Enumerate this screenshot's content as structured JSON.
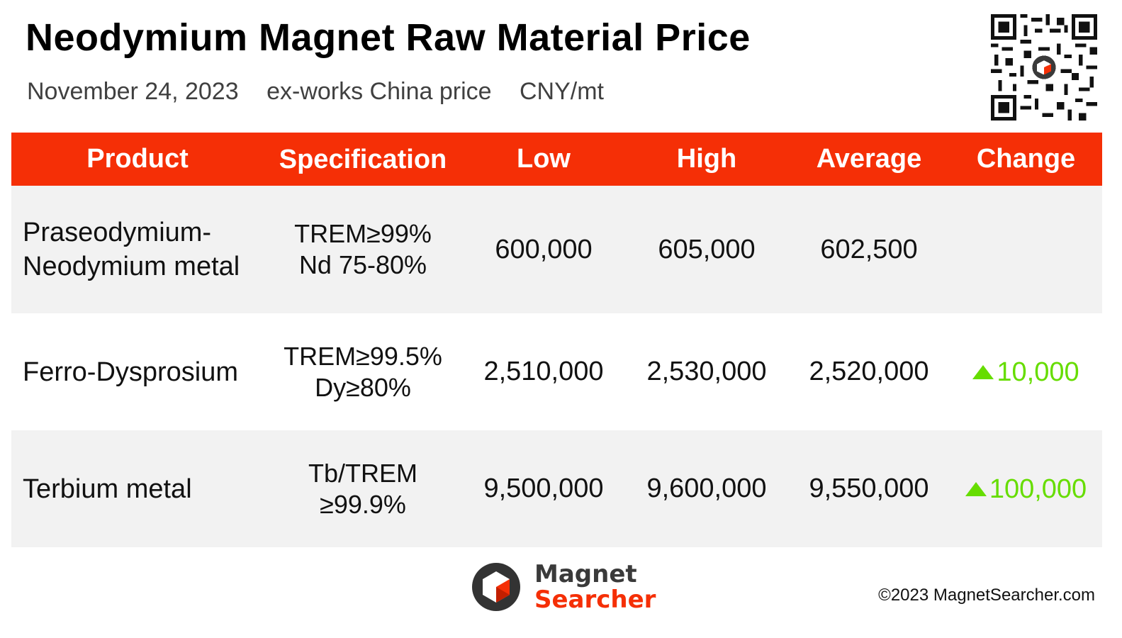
{
  "header": {
    "title": "Neodymium Magnet Raw Material Price",
    "date": "November 24, 2023",
    "basis": "ex-works China price",
    "unit": "CNY/mt"
  },
  "table": {
    "columns": [
      "Product",
      "Specification",
      "Low",
      "High",
      "Average",
      "Change"
    ],
    "rows": [
      {
        "product_line1": "Praseodymium-",
        "product_line2": "Neodymium metal",
        "spec_line1": "TREM≥99%",
        "spec_line2": "Nd 75-80%",
        "low": "600,000",
        "high": "605,000",
        "average": "602,500",
        "change": ""
      },
      {
        "product_line1": "Ferro-Dysprosium",
        "product_line2": "",
        "spec_line1": "TREM≥99.5%",
        "spec_line2": "Dy≥80%",
        "low": "2,510,000",
        "high": "2,530,000",
        "average": "2,520,000",
        "change": "10,000"
      },
      {
        "product_line1": "Terbium metal",
        "product_line2": "",
        "spec_line1": "Tb/TREM",
        "spec_line2": "≥99.9%",
        "low": "9,500,000",
        "high": "9,600,000",
        "average": "9,550,000",
        "change": "100,000"
      }
    ]
  },
  "icons": {
    "up": "triangle-up-icon",
    "qr": "qr-code-icon",
    "logo": "magnet-searcher-logo"
  },
  "colors": {
    "header_bg": "#f52f06",
    "row_shade": "#f2f2f2",
    "change_up": "#66dd00"
  },
  "footer": {
    "brand_line1": "Magnet",
    "brand_line2": "Searcher",
    "copyright": "©2023 MagnetSearcher.com"
  }
}
